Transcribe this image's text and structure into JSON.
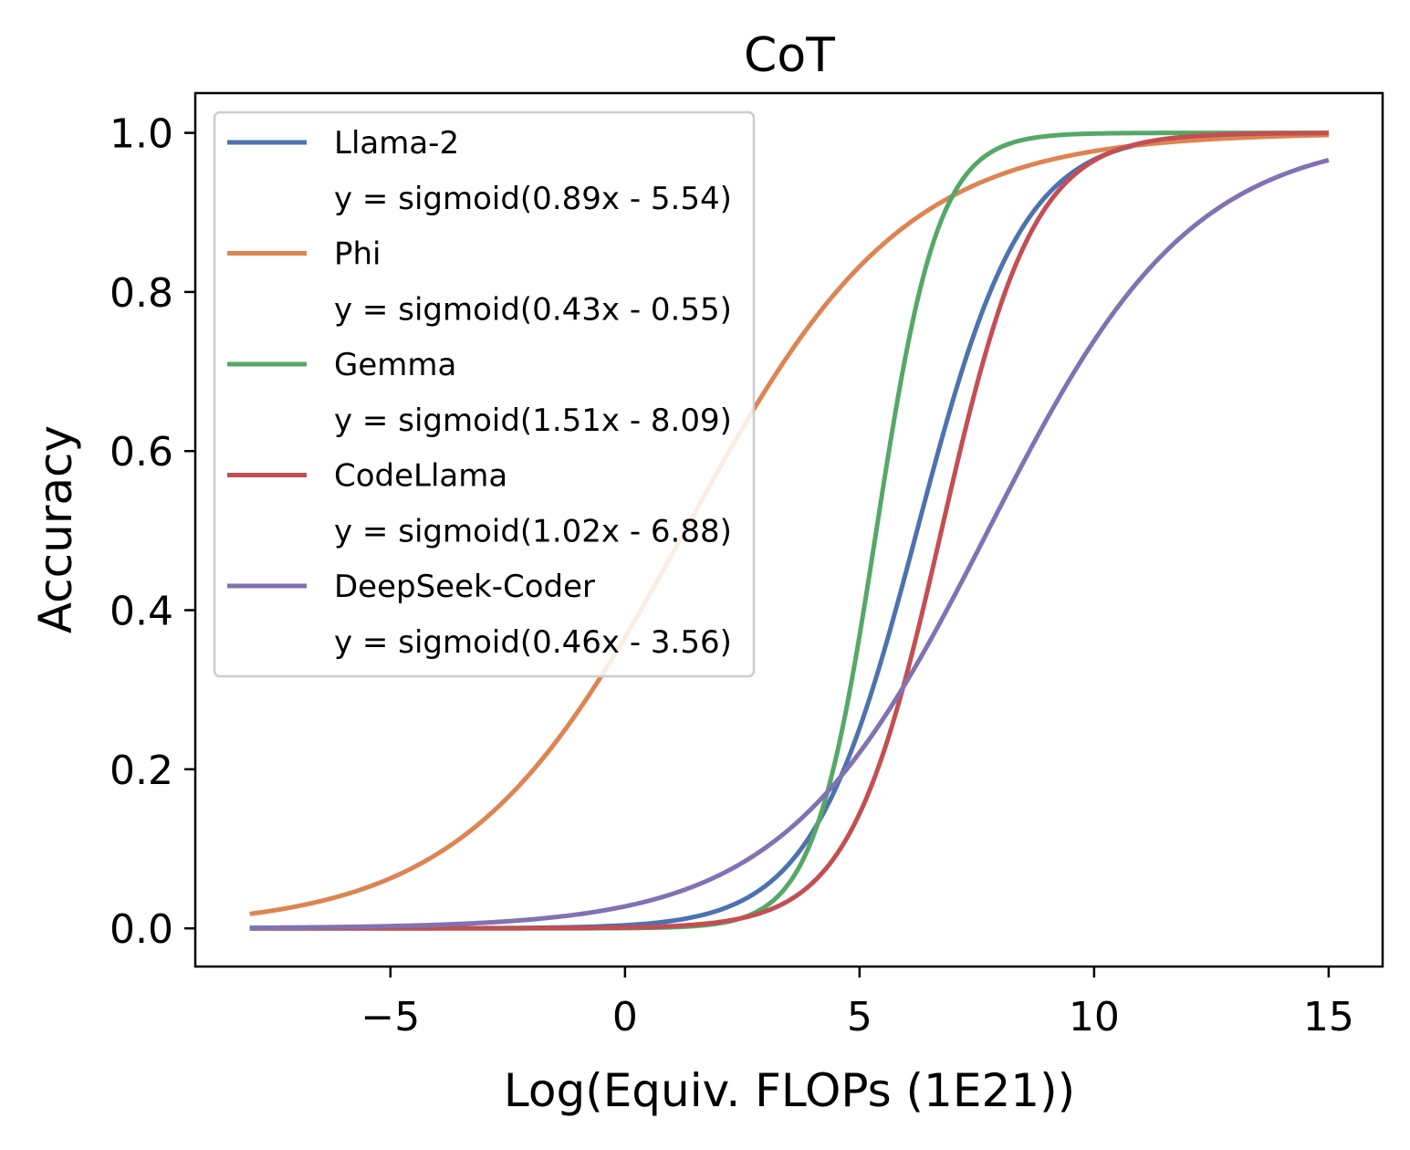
{
  "chart_data": {
    "type": "line",
    "title": "CoT",
    "xlabel": "Log(Equiv. FLOPs (1E21))",
    "ylabel": "Accuracy",
    "xlim": [
      -9.16,
      16.15
    ],
    "ylim": [
      -0.048,
      1.05
    ],
    "x_range_plotted": [
      -8,
      15
    ],
    "xticks": [
      -5,
      0,
      5,
      10,
      15
    ],
    "xtick_labels": [
      "−5",
      "0",
      "5",
      "10",
      "15"
    ],
    "yticks": [
      0.0,
      0.2,
      0.4,
      0.6,
      0.8,
      1.0
    ],
    "ytick_labels": [
      "0.0",
      "0.2",
      "0.4",
      "0.6",
      "0.8",
      "1.0"
    ],
    "grid": false,
    "legend_placement": "upper-left",
    "series": [
      {
        "name": "Llama-2",
        "equation": "y = sigmoid(0.89x - 5.54)",
        "slope": 0.89,
        "intercept": -5.54,
        "color": "#4C72B0"
      },
      {
        "name": "Phi",
        "equation": "y = sigmoid(0.43x - 0.55)",
        "slope": 0.43,
        "intercept": -0.55,
        "color": "#DD8452"
      },
      {
        "name": "Gemma",
        "equation": "y = sigmoid(1.51x - 8.09)",
        "slope": 1.51,
        "intercept": -8.09,
        "color": "#55A868"
      },
      {
        "name": "CodeLlama",
        "equation": "y = sigmoid(1.02x - 6.88)",
        "slope": 1.02,
        "intercept": -6.88,
        "color": "#C44E52"
      },
      {
        "name": "DeepSeek-Coder",
        "equation": "y = sigmoid(0.46x - 3.56)",
        "slope": 0.46,
        "intercept": -3.56,
        "color": "#8172B3"
      }
    ]
  }
}
